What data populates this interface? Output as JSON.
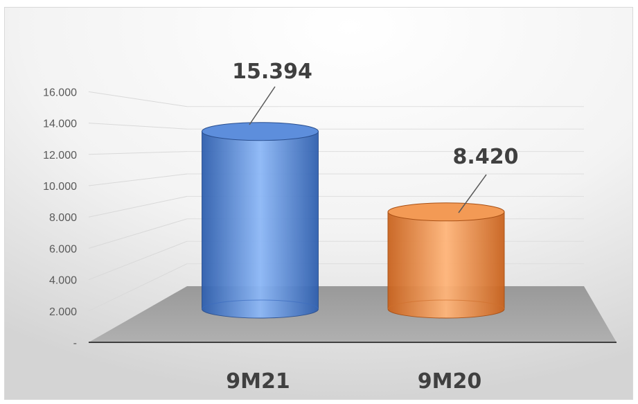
{
  "chart_data": {
    "type": "bar",
    "bar_shape": "cylinder-3d",
    "title": "",
    "xlabel": "",
    "ylabel": "",
    "categories": [
      "9M21",
      "9M20"
    ],
    "values": [
      15.394,
      8.42
    ],
    "data_labels": [
      "15.394",
      "8.420"
    ],
    "bar_colors": [
      "#4f81d6",
      "#f0914a"
    ],
    "ylim": [
      0,
      16
    ],
    "yticks": [
      {
        "value": 0,
        "label": "-"
      },
      {
        "value": 2,
        "label": "2.000"
      },
      {
        "value": 4,
        "label": "4.000"
      },
      {
        "value": 6,
        "label": "6.000"
      },
      {
        "value": 8,
        "label": "8.000"
      },
      {
        "value": 10,
        "label": "10.000"
      },
      {
        "value": 12,
        "label": "12.000"
      },
      {
        "value": 14,
        "label": "14.000"
      },
      {
        "value": 16,
        "label": "16.000"
      }
    ],
    "grid": true,
    "legend": "none"
  }
}
